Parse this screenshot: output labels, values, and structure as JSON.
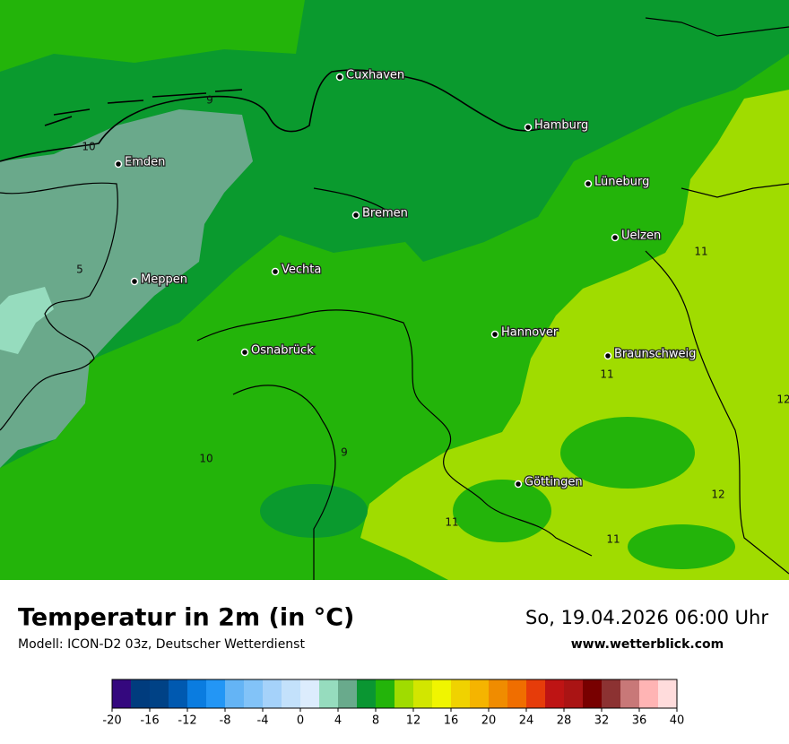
{
  "map": {
    "cities": [
      "Cuxhaven",
      "Hamburg",
      "Emden",
      "Lüneburg",
      "Bremen",
      "Uelzen",
      "Vechta",
      "Meppen",
      "Hannover",
      "Osnabrück",
      "Braunschweig",
      "Göttingen"
    ],
    "contour_labels": [
      "9",
      "10",
      "5",
      "11",
      "11",
      "12",
      "10",
      "9",
      "12",
      "11",
      "11"
    ]
  },
  "footer": {
    "title": "Temperatur in 2m (in °C)",
    "model": "Modell: ICON-D2 03z, Deutscher Wetterdienst",
    "datetime": "So, 19.04.2026 06:00 Uhr",
    "website": "www.wetterblick.com"
  },
  "colorbar": {
    "ticks": [
      -20,
      -16,
      -12,
      -8,
      -4,
      0,
      4,
      8,
      12,
      16,
      20,
      24,
      28,
      32,
      36,
      40
    ],
    "colors": [
      "#34087e",
      "#003c7e",
      "#004286",
      "#0059b0",
      "#0a7ce0",
      "#2396f5",
      "#64b4f5",
      "#82c3f8",
      "#a5d2fa",
      "#c3e1fb",
      "#dcecfd",
      "#96dcbe",
      "#69aa8c",
      "#0a9632",
      "#23b40a",
      "#a0dc00",
      "#d2e600",
      "#f0f500",
      "#f0d200",
      "#f5b400",
      "#f08c00",
      "#f06e00",
      "#e63c0a",
      "#be1414",
      "#aa1414",
      "#780000",
      "#8c3232",
      "#c87878",
      "#ffb4b4",
      "#ffdcdc"
    ]
  }
}
